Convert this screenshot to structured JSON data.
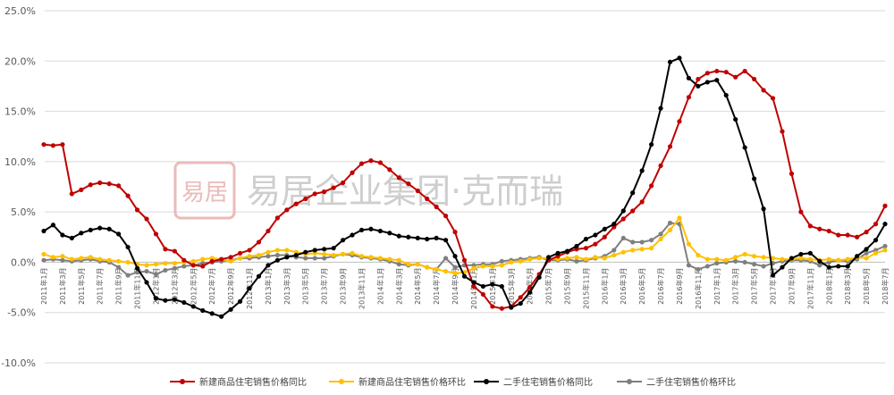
{
  "chart_data": {
    "type": "line",
    "title": "",
    "xlabel": "",
    "ylabel": "",
    "ylim": [
      -10,
      25
    ],
    "y_ticks": [
      "-10.0%",
      "-5.0%",
      "0.0%",
      "5.0%",
      "10.0%",
      "15.0%",
      "20.0%",
      "25.0%"
    ],
    "grid": "horizontal",
    "legend_position": "bottom",
    "x": [
      "2011年1月",
      "2011年2月",
      "2011年3月",
      "2011年4月",
      "2011年5月",
      "2011年6月",
      "2011年7月",
      "2011年8月",
      "2011年9月",
      "2011年10月",
      "2011年11月",
      "2011年12月",
      "2012年1月",
      "2012年2月",
      "2012年3月",
      "2012年4月",
      "2012年5月",
      "2012年6月",
      "2012年7月",
      "2012年8月",
      "2012年9月",
      "2012年10月",
      "2012年11月",
      "2012年12月",
      "2013年1月",
      "2013年2月",
      "2013年3月",
      "2013年4月",
      "2013年5月",
      "2013年6月",
      "2013年7月",
      "2013年8月",
      "2013年9月",
      "2013年10月",
      "2013年11月",
      "2013年12月",
      "2014年1月",
      "2014年2月",
      "2014年3月",
      "2014年4月",
      "2014年5月",
      "2014年6月",
      "2014年7月",
      "2014年8月",
      "2014年9月",
      "2014年10月",
      "2014年11月",
      "2014年12月",
      "2015年1月",
      "2015年2月",
      "2015年3月",
      "2015年4月",
      "2015年5月",
      "2015年6月",
      "2015年7月",
      "2015年8月",
      "2015年9月",
      "2015年10月",
      "2015年11月",
      "2015年12月",
      "2016年1月",
      "2016年2月",
      "2016年3月",
      "2016年4月",
      "2016年5月",
      "2016年6月",
      "2016年7月",
      "2016年8月",
      "2016年9月",
      "2016年10月",
      "2016年11月",
      "2016年12月",
      "2017年1月",
      "2017年2月",
      "2017年3月",
      "2017年4月",
      "2017年5月",
      "2017年6月",
      "2017年7月",
      "2017年8月",
      "2017年9月",
      "2017年10月",
      "2017年11月",
      "2017年12月",
      "2018年1月",
      "2018年2月",
      "2018年3月",
      "2018年4月",
      "2018年5月",
      "2018年6月",
      "2018年7月"
    ],
    "x_tick_labels": [
      "2011年1月",
      "2011年3月",
      "2011年5月",
      "2011年7月",
      "2011年9月",
      "2011年11月",
      "2012年1月",
      "2012年3月",
      "2012年5月",
      "2012年7月",
      "2012年9月",
      "2012年11月",
      "2013年1月",
      "2013年3月",
      "2013年5月",
      "2013年7月",
      "2013年9月",
      "2013年11月",
      "2014年1月",
      "2014年3月",
      "2014年5月",
      "2014年7月",
      "2014年9月",
      "2014年11月",
      "2015年1月",
      "2015年3月",
      "2015年5月",
      "2015年7月",
      "2015年9月",
      "2015年11月",
      "2016年1月",
      "2016年3月",
      "2016年5月",
      "2016年7月",
      "2016年9月",
      "2016年11月",
      "2017年1月",
      "2017年3月",
      "2017年5月",
      "2017年7月",
      "2017年9月",
      "2017年11月",
      "2018年1月",
      "2018年3月",
      "2018年5月",
      "2018年7月"
    ],
    "series": [
      {
        "name": "新建商品住宅销售价格同比",
        "color": "#c00000",
        "values": [
          11.7,
          11.6,
          11.7,
          6.8,
          7.2,
          7.7,
          7.9,
          7.8,
          7.6,
          6.6,
          5.2,
          4.3,
          2.8,
          1.3,
          1.1,
          0.2,
          -0.3,
          -0.4,
          0.1,
          0.3,
          0.5,
          0.9,
          1.2,
          2.0,
          3.1,
          4.4,
          5.2,
          5.8,
          6.3,
          6.8,
          7.0,
          7.4,
          7.9,
          8.9,
          9.8,
          10.1,
          9.9,
          9.2,
          8.4,
          7.8,
          7.1,
          6.3,
          5.5,
          4.6,
          3.0,
          0.2,
          -2.4,
          -3.2,
          -4.4,
          -4.6,
          -4.4,
          -3.5,
          -2.5,
          -1.2,
          0.2,
          0.6,
          1.0,
          1.3,
          1.4,
          1.8,
          2.5,
          3.5,
          4.3,
          5.1,
          6.0,
          7.6,
          9.6,
          11.5,
          14.0,
          16.4,
          18.2,
          18.8,
          19.0,
          18.9,
          18.4,
          19.0,
          18.2,
          17.1,
          16.3,
          13.0,
          8.8,
          5.0,
          3.6,
          3.3,
          3.1,
          2.7,
          2.7,
          2.5,
          3.0,
          3.8,
          5.6
        ]
      },
      {
        "name": "新建商品住宅销售价格环比",
        "color": "#ffc000",
        "values": [
          0.8,
          0.5,
          0.6,
          0.3,
          0.4,
          0.5,
          0.3,
          0.2,
          0.1,
          0.0,
          -0.2,
          -0.3,
          -0.2,
          -0.1,
          -0.1,
          0.0,
          0.1,
          0.3,
          0.4,
          0.3,
          0.1,
          0.4,
          0.6,
          0.7,
          1.0,
          1.2,
          1.2,
          1.0,
          0.8,
          0.9,
          0.8,
          0.7,
          0.8,
          0.9,
          0.6,
          0.5,
          0.4,
          0.3,
          0.2,
          -0.2,
          -0.2,
          -0.5,
          -0.7,
          -0.9,
          -1.1,
          -1.0,
          -0.6,
          -0.4,
          -0.4,
          -0.3,
          0.0,
          0.1,
          0.3,
          0.4,
          0.4,
          0.3,
          0.4,
          0.5,
          0.3,
          0.5,
          0.4,
          0.7,
          1.0,
          1.2,
          1.3,
          1.4,
          2.3,
          3.2,
          4.4,
          1.8,
          0.7,
          0.3,
          0.3,
          0.2,
          0.5,
          0.8,
          0.6,
          0.5,
          0.4,
          0.3,
          0.3,
          0.4,
          0.3,
          0.2,
          0.3,
          0.2,
          0.3,
          0.5,
          0.4,
          0.9,
          1.2
        ]
      },
      {
        "name": "二手住宅销售价格同比",
        "color": "#000000",
        "values": [
          3.1,
          3.7,
          2.7,
          2.4,
          2.9,
          3.2,
          3.4,
          3.3,
          2.8,
          1.5,
          -0.6,
          -2.0,
          -3.6,
          -3.8,
          -3.7,
          -4.0,
          -4.4,
          -4.8,
          -5.1,
          -5.4,
          -4.7,
          -3.9,
          -2.6,
          -1.4,
          -0.3,
          0.2,
          0.5,
          0.7,
          1.0,
          1.2,
          1.3,
          1.4,
          2.2,
          2.7,
          3.2,
          3.3,
          3.1,
          2.9,
          2.6,
          2.5,
          2.4,
          2.3,
          2.4,
          2.2,
          0.6,
          -1.4,
          -2.0,
          -2.4,
          -2.2,
          -2.4,
          -4.5,
          -4.1,
          -3.0,
          -1.5,
          0.5,
          0.9,
          1.1,
          1.6,
          2.3,
          2.7,
          3.3,
          3.8,
          5.1,
          6.9,
          9.1,
          11.7,
          15.3,
          19.9,
          20.3,
          18.3,
          17.5,
          17.9,
          18.1,
          16.6,
          14.2,
          11.4,
          8.3,
          5.3,
          -1.3,
          -0.5,
          0.4,
          0.8,
          0.9,
          0.1,
          -0.5,
          -0.4,
          -0.4,
          0.6,
          1.3,
          2.2,
          3.8
        ]
      },
      {
        "name": "二手住宅销售价格环比",
        "color": "#7f7f7f",
        "values": [
          0.2,
          0.3,
          0.2,
          0.1,
          0.2,
          0.3,
          0.1,
          0.0,
          -0.5,
          -1.3,
          -1.0,
          -0.9,
          -1.2,
          -0.8,
          -0.6,
          -0.4,
          -0.3,
          -0.1,
          0.0,
          0.1,
          0.2,
          0.4,
          0.4,
          0.5,
          0.6,
          0.7,
          0.7,
          0.5,
          0.4,
          0.4,
          0.4,
          0.6,
          0.8,
          0.7,
          0.5,
          0.4,
          0.3,
          0.1,
          -0.2,
          -0.3,
          -0.2,
          -0.5,
          -0.7,
          0.4,
          -0.5,
          -0.3,
          -0.3,
          -0.2,
          -0.2,
          0.1,
          0.2,
          0.3,
          0.4,
          0.5,
          0.2,
          0.2,
          0.3,
          0.1,
          0.2,
          0.4,
          0.6,
          1.2,
          2.4,
          2.0,
          2.0,
          2.2,
          2.8,
          3.9,
          3.8,
          -0.3,
          -0.7,
          -0.4,
          -0.1,
          0.0,
          0.1,
          0.0,
          -0.2,
          -0.4,
          -0.1,
          0.1,
          0.2,
          0.2,
          0.1,
          -0.3,
          0.0,
          0.2,
          0.1,
          0.3,
          0.9,
          1.2,
          1.6
        ]
      }
    ]
  },
  "watermark": {
    "seal_text": "易居",
    "text": "易居企业集团·克而瑞"
  }
}
